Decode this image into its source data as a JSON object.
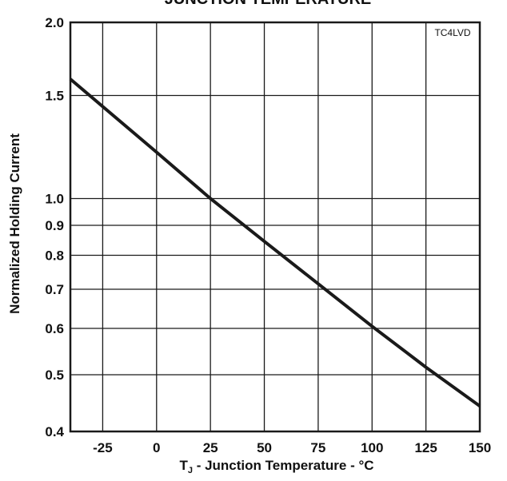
{
  "colors": {
    "line": "#1a1a1a",
    "grid": "#1a1a1a",
    "background": "#ffffff"
  },
  "chart_data": {
    "type": "line",
    "title": "JUNCTION TEMPERATURE",
    "figure_code": "TC4LVD",
    "xlabel_prefix": "T",
    "xlabel_subscript": "J",
    "xlabel_rest": " - Junction Temperature - °C",
    "ylabel": "Normalized Holding Current",
    "xlim": [
      -40,
      150
    ],
    "ylim": [
      0.4,
      2.0
    ],
    "yscale": "log",
    "grid": true,
    "x_ticks": [
      -25,
      0,
      25,
      50,
      75,
      100,
      125,
      150
    ],
    "x_tick_labels": [
      "-25",
      "0",
      "25",
      "50",
      "75",
      "100",
      "125",
      "150"
    ],
    "y_ticks": [
      0.4,
      0.5,
      0.6,
      0.7,
      0.8,
      0.9,
      1.0,
      1.5,
      2.0
    ],
    "y_tick_labels": [
      "0.4",
      "0.5",
      "0.6",
      "0.7",
      "0.8",
      "0.9",
      "1.0",
      "1.5",
      "2.0"
    ],
    "series": [
      {
        "x": [
          -40,
          0,
          25,
          50,
          75,
          100,
          125,
          150
        ],
        "y": [
          1.6,
          1.2,
          1.0,
          0.845,
          0.715,
          0.605,
          0.515,
          0.442
        ]
      }
    ]
  }
}
